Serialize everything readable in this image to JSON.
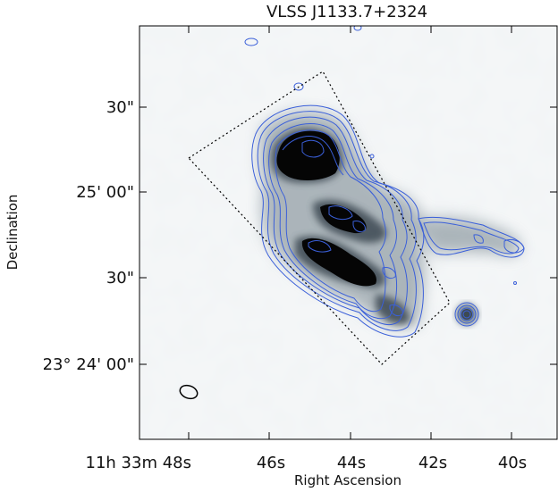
{
  "title": "VLSS J1133.7+2324",
  "axes": {
    "xlabel": "Right Ascension",
    "ylabel": "Declination",
    "x_ticks": [
      {
        "label": "11h 33m 48s"
      },
      {
        "label": "46s"
      },
      {
        "label": "44s"
      },
      {
        "label": "42s"
      },
      {
        "label": "40s"
      }
    ],
    "y_ticks": [
      {
        "label": "30\""
      },
      {
        "label": "25' 00\""
      },
      {
        "label": "30\""
      },
      {
        "label": "23° 24' 00\""
      }
    ]
  },
  "colors": {
    "contour": "#3a5fd9",
    "frame": "#000000",
    "background_noise": "#dfe6ea",
    "emission_core": "#000000"
  }
}
